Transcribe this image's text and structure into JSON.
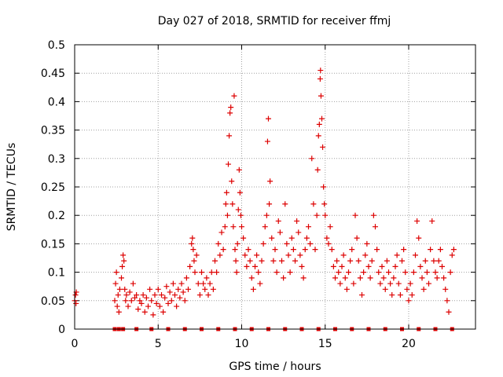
{
  "chart_data": {
    "type": "scatter",
    "title": "Day 027 of 2018, SRMTID for receiver ffmj",
    "xlabel": "GPS time / hours",
    "ylabel": "SRMTID / TECUs",
    "xlim": [
      0,
      24
    ],
    "ylim": [
      0,
      0.5
    ],
    "grid": true,
    "marker": "+",
    "color": "#dd0000",
    "x_ticks": [
      0,
      5,
      10,
      15,
      20
    ],
    "x_tick_labels": [
      "0",
      "5",
      "10",
      "15",
      "20"
    ],
    "y_ticks": [
      0,
      0.05,
      0.1,
      0.15,
      0.2,
      0.25,
      0.3,
      0.35,
      0.4,
      0.45,
      0.5
    ],
    "y_tick_labels": [
      "0",
      "0.05",
      "0.1",
      "0.15",
      "0.2",
      "0.25",
      "0.3",
      "0.35",
      "0.4",
      "0.45",
      "0.5"
    ],
    "baseline_markers_hours": [
      2.4,
      2.65,
      2.9,
      3.7,
      4.6,
      5.6,
      6.6,
      7.6,
      8.6,
      9.6,
      10.6,
      11.6,
      12.6,
      13.6,
      14.6,
      15.6,
      16.6,
      17.6,
      18.6,
      19.6,
      20.6,
      21.6,
      22.6
    ],
    "series": [
      {
        "name": "SRMTID",
        "points": [
          [
            0.0,
            0.05
          ],
          [
            0.05,
            0.06
          ],
          [
            0.08,
            0.045
          ],
          [
            0.1,
            0.065
          ],
          [
            2.4,
            0.05
          ],
          [
            2.45,
            0.08
          ],
          [
            2.5,
            0.1
          ],
          [
            2.55,
            0.04
          ],
          [
            2.6,
            0.06
          ],
          [
            2.65,
            0.03
          ],
          [
            2.7,
            0.07
          ],
          [
            2.8,
            0.09
          ],
          [
            2.85,
            0.11
          ],
          [
            2.9,
            0.13
          ],
          [
            2.95,
            0.12
          ],
          [
            3.0,
            0.07
          ],
          [
            3.05,
            0.05
          ],
          [
            3.1,
            0.06
          ],
          [
            3.2,
            0.04
          ],
          [
            3.3,
            0.065
          ],
          [
            3.4,
            0.05
          ],
          [
            3.5,
            0.08
          ],
          [
            3.6,
            0.055
          ],
          [
            3.7,
            0.06
          ],
          [
            3.8,
            0.035
          ],
          [
            3.9,
            0.05
          ],
          [
            4.0,
            0.045
          ],
          [
            4.1,
            0.06
          ],
          [
            4.2,
            0.03
          ],
          [
            4.3,
            0.055
          ],
          [
            4.4,
            0.04
          ],
          [
            4.5,
            0.07
          ],
          [
            4.6,
            0.05
          ],
          [
            4.7,
            0.025
          ],
          [
            4.8,
            0.06
          ],
          [
            4.9,
            0.045
          ],
          [
            5.0,
            0.07
          ],
          [
            5.1,
            0.04
          ],
          [
            5.2,
            0.06
          ],
          [
            5.3,
            0.03
          ],
          [
            5.4,
            0.055
          ],
          [
            5.5,
            0.075
          ],
          [
            5.6,
            0.045
          ],
          [
            5.7,
            0.065
          ],
          [
            5.8,
            0.05
          ],
          [
            5.9,
            0.08
          ],
          [
            6.0,
            0.06
          ],
          [
            6.1,
            0.04
          ],
          [
            6.2,
            0.07
          ],
          [
            6.3,
            0.055
          ],
          [
            6.4,
            0.08
          ],
          [
            6.5,
            0.065
          ],
          [
            6.6,
            0.05
          ],
          [
            6.7,
            0.09
          ],
          [
            6.8,
            0.07
          ],
          [
            6.9,
            0.11
          ],
          [
            7.0,
            0.15
          ],
          [
            7.05,
            0.16
          ],
          [
            7.1,
            0.14
          ],
          [
            7.15,
            0.12
          ],
          [
            7.2,
            0.1
          ],
          [
            7.3,
            0.13
          ],
          [
            7.4,
            0.08
          ],
          [
            7.5,
            0.06
          ],
          [
            7.6,
            0.1
          ],
          [
            7.7,
            0.08
          ],
          [
            7.8,
            0.07
          ],
          [
            7.9,
            0.09
          ],
          [
            8.0,
            0.06
          ],
          [
            8.1,
            0.08
          ],
          [
            8.2,
            0.1
          ],
          [
            8.3,
            0.07
          ],
          [
            8.4,
            0.12
          ],
          [
            8.5,
            0.1
          ],
          [
            8.6,
            0.15
          ],
          [
            8.7,
            0.13
          ],
          [
            8.8,
            0.17
          ],
          [
            8.9,
            0.14
          ],
          [
            9.0,
            0.18
          ],
          [
            9.05,
            0.22
          ],
          [
            9.1,
            0.24
          ],
          [
            9.15,
            0.2
          ],
          [
            9.2,
            0.29
          ],
          [
            9.25,
            0.34
          ],
          [
            9.3,
            0.38
          ],
          [
            9.35,
            0.39
          ],
          [
            9.4,
            0.26
          ],
          [
            9.45,
            0.22
          ],
          [
            9.5,
            0.18
          ],
          [
            9.55,
            0.41
          ],
          [
            9.6,
            0.14
          ],
          [
            9.65,
            0.12
          ],
          [
            9.7,
            0.1
          ],
          [
            9.75,
            0.15
          ],
          [
            9.8,
            0.21
          ],
          [
            9.85,
            0.28
          ],
          [
            9.9,
            0.24
          ],
          [
            9.95,
            0.2
          ],
          [
            10.0,
            0.18
          ],
          [
            10.1,
            0.16
          ],
          [
            10.2,
            0.13
          ],
          [
            10.3,
            0.11
          ],
          [
            10.4,
            0.14
          ],
          [
            10.5,
            0.12
          ],
          [
            10.6,
            0.09
          ],
          [
            10.7,
            0.07
          ],
          [
            10.8,
            0.11
          ],
          [
            10.9,
            0.13
          ],
          [
            11.0,
            0.1
          ],
          [
            11.1,
            0.08
          ],
          [
            11.2,
            0.12
          ],
          [
            11.3,
            0.15
          ],
          [
            11.4,
            0.18
          ],
          [
            11.5,
            0.2
          ],
          [
            11.55,
            0.33
          ],
          [
            11.6,
            0.37
          ],
          [
            11.65,
            0.22
          ],
          [
            11.7,
            0.26
          ],
          [
            11.8,
            0.16
          ],
          [
            11.9,
            0.12
          ],
          [
            12.0,
            0.14
          ],
          [
            12.1,
            0.1
          ],
          [
            12.2,
            0.19
          ],
          [
            12.3,
            0.17
          ],
          [
            12.4,
            0.12
          ],
          [
            12.5,
            0.09
          ],
          [
            12.6,
            0.22
          ],
          [
            12.7,
            0.15
          ],
          [
            12.8,
            0.13
          ],
          [
            12.9,
            0.1
          ],
          [
            13.0,
            0.16
          ],
          [
            13.1,
            0.14
          ],
          [
            13.2,
            0.12
          ],
          [
            13.3,
            0.19
          ],
          [
            13.4,
            0.17
          ],
          [
            13.5,
            0.13
          ],
          [
            13.6,
            0.11
          ],
          [
            13.7,
            0.09
          ],
          [
            13.8,
            0.14
          ],
          [
            13.9,
            0.16
          ],
          [
            14.0,
            0.18
          ],
          [
            14.1,
            0.15
          ],
          [
            14.2,
            0.3
          ],
          [
            14.3,
            0.22
          ],
          [
            14.4,
            0.14
          ],
          [
            14.5,
            0.2
          ],
          [
            14.55,
            0.28
          ],
          [
            14.6,
            0.34
          ],
          [
            14.65,
            0.36
          ],
          [
            14.7,
            0.44
          ],
          [
            14.72,
            0.455
          ],
          [
            14.75,
            0.41
          ],
          [
            14.8,
            0.37
          ],
          [
            14.85,
            0.32
          ],
          [
            14.9,
            0.25
          ],
          [
            14.95,
            0.22
          ],
          [
            15.0,
            0.2
          ],
          [
            15.1,
            0.16
          ],
          [
            15.2,
            0.15
          ],
          [
            15.3,
            0.18
          ],
          [
            15.4,
            0.14
          ],
          [
            15.5,
            0.11
          ],
          [
            15.6,
            0.09
          ],
          [
            15.7,
            0.12
          ],
          [
            15.8,
            0.1
          ],
          [
            15.9,
            0.08
          ],
          [
            16.0,
            0.11
          ],
          [
            16.1,
            0.13
          ],
          [
            16.2,
            0.09
          ],
          [
            16.3,
            0.07
          ],
          [
            16.4,
            0.1
          ],
          [
            16.5,
            0.12
          ],
          [
            16.6,
            0.14
          ],
          [
            16.7,
            0.08
          ],
          [
            16.8,
            0.2
          ],
          [
            16.9,
            0.16
          ],
          [
            17.0,
            0.12
          ],
          [
            17.1,
            0.09
          ],
          [
            17.2,
            0.06
          ],
          [
            17.3,
            0.1
          ],
          [
            17.4,
            0.13
          ],
          [
            17.5,
            0.15
          ],
          [
            17.6,
            0.11
          ],
          [
            17.7,
            0.09
          ],
          [
            17.8,
            0.12
          ],
          [
            17.9,
            0.2
          ],
          [
            18.0,
            0.18
          ],
          [
            18.1,
            0.14
          ],
          [
            18.2,
            0.1
          ],
          [
            18.3,
            0.08
          ],
          [
            18.4,
            0.11
          ],
          [
            18.5,
            0.09
          ],
          [
            18.6,
            0.07
          ],
          [
            18.7,
            0.12
          ],
          [
            18.8,
            0.1
          ],
          [
            18.9,
            0.08
          ],
          [
            19.0,
            0.06
          ],
          [
            19.1,
            0.09
          ],
          [
            19.2,
            0.11
          ],
          [
            19.3,
            0.13
          ],
          [
            19.4,
            0.08
          ],
          [
            19.5,
            0.06
          ],
          [
            19.6,
            0.12
          ],
          [
            19.7,
            0.14
          ],
          [
            19.8,
            0.1
          ],
          [
            19.9,
            0.07
          ],
          [
            20.0,
            0.05
          ],
          [
            20.1,
            0.08
          ],
          [
            20.2,
            0.06
          ],
          [
            20.3,
            0.1
          ],
          [
            20.4,
            0.13
          ],
          [
            20.5,
            0.19
          ],
          [
            20.6,
            0.16
          ],
          [
            20.7,
            0.11
          ],
          [
            20.8,
            0.09
          ],
          [
            20.9,
            0.07
          ],
          [
            21.0,
            0.12
          ],
          [
            21.1,
            0.1
          ],
          [
            21.2,
            0.08
          ],
          [
            21.3,
            0.14
          ],
          [
            21.4,
            0.19
          ],
          [
            21.5,
            0.12
          ],
          [
            21.6,
            0.1
          ],
          [
            21.7,
            0.09
          ],
          [
            21.8,
            0.12
          ],
          [
            21.9,
            0.14
          ],
          [
            22.0,
            0.11
          ],
          [
            22.1,
            0.09
          ],
          [
            22.2,
            0.07
          ],
          [
            22.3,
            0.05
          ],
          [
            22.4,
            0.03
          ],
          [
            22.5,
            0.1
          ],
          [
            22.6,
            0.13
          ],
          [
            22.7,
            0.14
          ]
        ]
      }
    ]
  }
}
